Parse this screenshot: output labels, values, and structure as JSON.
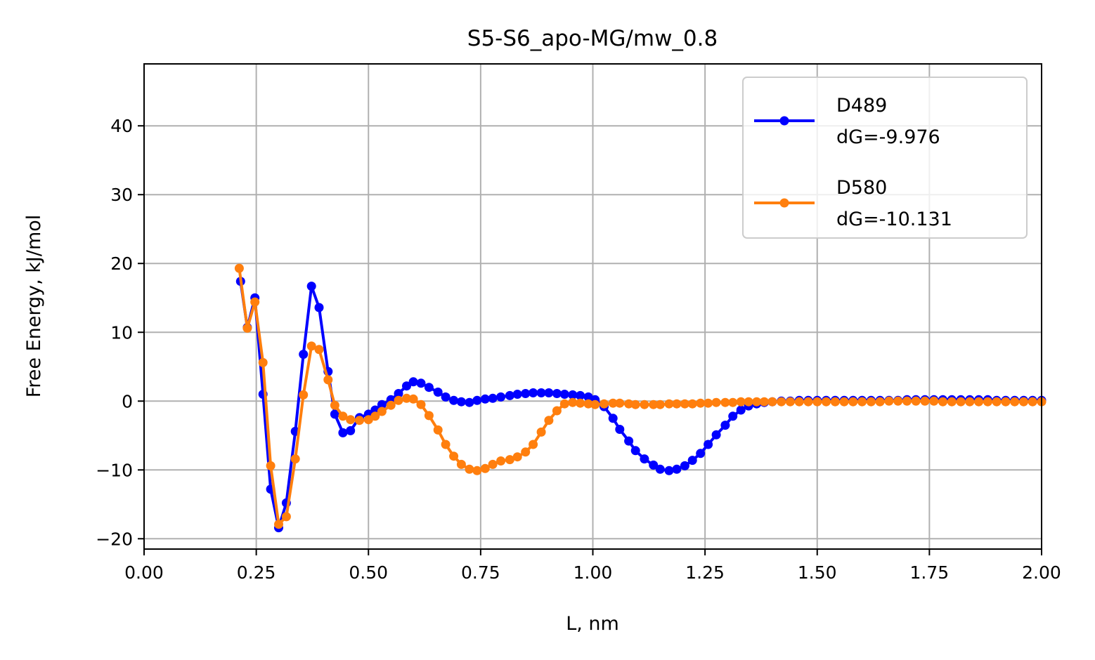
{
  "chart_data": {
    "type": "line",
    "title": "S5-S6_apo-MG/mw_0.8",
    "xlabel": "L, nm",
    "ylabel": "Free Energy, kJ/mol",
    "xlim": [
      0.0,
      2.0
    ],
    "ylim": [
      -21.5,
      49
    ],
    "grid": true,
    "legend_position": "top-right",
    "x_ticks": [
      0.0,
      0.25,
      0.5,
      0.75,
      1.0,
      1.25,
      1.5,
      1.75,
      2.0
    ],
    "x_tick_labels": [
      "0.00",
      "0.25",
      "0.50",
      "0.75",
      "1.00",
      "1.25",
      "1.50",
      "1.75",
      "2.00"
    ],
    "y_ticks": [
      -20,
      -10,
      0,
      10,
      20,
      30,
      40
    ],
    "y_tick_labels": [
      "−20",
      "−10",
      "0",
      "10",
      "20",
      "30",
      "40"
    ],
    "series": [
      {
        "name": "D489",
        "legend_label_line1": "D489",
        "legend_label_line2": "dG=-9.976",
        "color": "#0000ff",
        "x": [
          0.215,
          0.23,
          0.247,
          0.265,
          0.282,
          0.3,
          0.317,
          0.337,
          0.355,
          0.373,
          0.39,
          0.41,
          0.425,
          0.443,
          0.46,
          0.48,
          0.5,
          0.515,
          0.53,
          0.55,
          0.567,
          0.585,
          0.6,
          0.617,
          0.635,
          0.655,
          0.672,
          0.69,
          0.707,
          0.725,
          0.742,
          0.76,
          0.777,
          0.795,
          0.815,
          0.832,
          0.85,
          0.867,
          0.885,
          0.902,
          0.92,
          0.937,
          0.955,
          0.972,
          0.99,
          1.005,
          1.025,
          1.045,
          1.06,
          1.08,
          1.095,
          1.115,
          1.135,
          1.15,
          1.17,
          1.187,
          1.205,
          1.222,
          1.24,
          1.257,
          1.275,
          1.295,
          1.312,
          1.33,
          1.347,
          1.365,
          1.382,
          1.4,
          1.42,
          1.44,
          1.46,
          1.48,
          1.5,
          1.52,
          1.54,
          1.56,
          1.58,
          1.6,
          1.62,
          1.64,
          1.66,
          1.68,
          1.7,
          1.72,
          1.74,
          1.76,
          1.78,
          1.8,
          1.82,
          1.84,
          1.86,
          1.88,
          1.9,
          1.92,
          1.94,
          1.96,
          1.98,
          2.0
        ],
        "y": [
          17.4,
          10.7,
          15.0,
          1.0,
          -12.8,
          -18.4,
          -14.8,
          -4.4,
          6.8,
          16.7,
          13.6,
          4.3,
          -1.9,
          -4.6,
          -4.3,
          -2.4,
          -1.9,
          -1.3,
          -0.5,
          0.2,
          1.1,
          2.2,
          2.8,
          2.6,
          2.0,
          1.3,
          0.6,
          0.1,
          -0.1,
          -0.2,
          0.1,
          0.3,
          0.4,
          0.6,
          0.8,
          1.0,
          1.1,
          1.2,
          1.2,
          1.2,
          1.1,
          1.0,
          0.9,
          0.8,
          0.6,
          0.2,
          -0.8,
          -2.5,
          -4.1,
          -5.8,
          -7.2,
          -8.4,
          -9.3,
          -9.9,
          -10.1,
          -9.9,
          -9.4,
          -8.6,
          -7.6,
          -6.3,
          -4.9,
          -3.5,
          -2.2,
          -1.3,
          -0.7,
          -0.4,
          -0.2,
          -0.1,
          0.0,
          0.0,
          0.1,
          0.1,
          0.1,
          0.1,
          0.1,
          0.1,
          0.1,
          0.1,
          0.1,
          0.1,
          0.1,
          0.1,
          0.2,
          0.2,
          0.2,
          0.2,
          0.2,
          0.2,
          0.2,
          0.2,
          0.2,
          0.2,
          0.1,
          0.1,
          0.1,
          0.1,
          0.1,
          0.1
        ]
      },
      {
        "name": "D580",
        "legend_label_line1": "D580",
        "legend_label_line2": "dG=-10.131",
        "color": "#ff7f0e",
        "x": [
          0.212,
          0.23,
          0.247,
          0.265,
          0.282,
          0.3,
          0.317,
          0.337,
          0.355,
          0.373,
          0.39,
          0.41,
          0.425,
          0.443,
          0.46,
          0.48,
          0.5,
          0.515,
          0.53,
          0.55,
          0.567,
          0.585,
          0.6,
          0.617,
          0.635,
          0.655,
          0.672,
          0.69,
          0.707,
          0.725,
          0.742,
          0.76,
          0.777,
          0.795,
          0.815,
          0.832,
          0.85,
          0.867,
          0.885,
          0.902,
          0.92,
          0.937,
          0.955,
          0.972,
          0.99,
          1.005,
          1.025,
          1.045,
          1.06,
          1.08,
          1.095,
          1.115,
          1.135,
          1.15,
          1.17,
          1.187,
          1.205,
          1.222,
          1.24,
          1.257,
          1.275,
          1.295,
          1.312,
          1.33,
          1.347,
          1.365,
          1.382,
          1.4,
          1.42,
          1.44,
          1.46,
          1.48,
          1.5,
          1.52,
          1.54,
          1.56,
          1.58,
          1.6,
          1.62,
          1.64,
          1.66,
          1.68,
          1.7,
          1.72,
          1.74,
          1.76,
          1.78,
          1.8,
          1.82,
          1.84,
          1.86,
          1.88,
          1.9,
          1.92,
          1.94,
          1.96,
          1.98,
          2.0
        ],
        "y": [
          19.3,
          10.6,
          14.4,
          5.6,
          -9.4,
          -17.9,
          -16.8,
          -8.4,
          0.9,
          8.0,
          7.5,
          3.1,
          -0.6,
          -2.2,
          -2.7,
          -2.8,
          -2.7,
          -2.2,
          -1.5,
          -0.6,
          0.1,
          0.4,
          0.3,
          -0.5,
          -2.1,
          -4.2,
          -6.3,
          -8.0,
          -9.2,
          -9.9,
          -10.1,
          -9.8,
          -9.2,
          -8.7,
          -8.5,
          -8.1,
          -7.4,
          -6.3,
          -4.5,
          -2.8,
          -1.4,
          -0.4,
          -0.2,
          -0.3,
          -0.4,
          -0.5,
          -0.4,
          -0.3,
          -0.3,
          -0.4,
          -0.5,
          -0.5,
          -0.5,
          -0.5,
          -0.4,
          -0.4,
          -0.4,
          -0.4,
          -0.3,
          -0.3,
          -0.2,
          -0.2,
          -0.2,
          -0.1,
          -0.1,
          -0.1,
          -0.1,
          -0.1,
          -0.1,
          -0.1,
          -0.1,
          -0.1,
          -0.1,
          -0.1,
          -0.1,
          -0.1,
          -0.1,
          -0.1,
          -0.1,
          -0.1,
          0.0,
          0.0,
          0.0,
          0.0,
          0.0,
          0.0,
          -0.1,
          -0.1,
          -0.1,
          -0.1,
          -0.1,
          -0.1,
          -0.1,
          -0.1,
          -0.1,
          -0.1,
          -0.1,
          -0.1
        ]
      }
    ]
  }
}
